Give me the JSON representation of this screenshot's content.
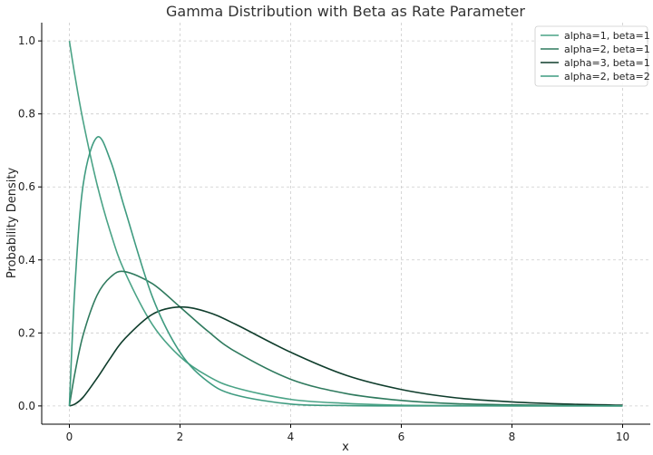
{
  "chart_data": {
    "type": "line",
    "title": "Gamma Distribution with Beta as Rate Parameter",
    "xlabel": "x",
    "ylabel": "Probability Density",
    "xlim": [
      -0.5,
      10.5
    ],
    "ylim": [
      -0.05,
      1.05
    ],
    "x_ticks": [
      "0",
      "2",
      "4",
      "6",
      "8",
      "10"
    ],
    "y_ticks": [
      "0.0",
      "0.2",
      "0.4",
      "0.6",
      "0.8",
      "1.0"
    ],
    "grid": true,
    "legend_position": "top-right",
    "x": [
      0,
      0.1,
      0.25,
      0.5,
      0.75,
      1,
      1.5,
      2,
      2.5,
      3,
      4,
      5,
      6,
      7,
      8,
      9,
      10
    ],
    "series": [
      {
        "name": "alpha=1, beta=1",
        "color": "#4aa386",
        "values": [
          1.0,
          0.905,
          0.779,
          0.607,
          0.472,
          0.368,
          0.223,
          0.135,
          0.082,
          0.05,
          0.018,
          0.007,
          0.002,
          0.001,
          0.0,
          0.0,
          0.0
        ]
      },
      {
        "name": "alpha=2, beta=1",
        "color": "#2f7a5e",
        "values": [
          0.0,
          0.09,
          0.195,
          0.303,
          0.354,
          0.368,
          0.335,
          0.271,
          0.205,
          0.149,
          0.073,
          0.034,
          0.015,
          0.006,
          0.003,
          0.001,
          0.0
        ]
      },
      {
        "name": "alpha=3, beta=1",
        "color": "#0f3d2c",
        "values": [
          0.0,
          0.005,
          0.024,
          0.076,
          0.133,
          0.184,
          0.251,
          0.271,
          0.257,
          0.224,
          0.147,
          0.084,
          0.045,
          0.022,
          0.011,
          0.005,
          0.002
        ]
      },
      {
        "name": "alpha=2, beta=2",
        "color": "#3f9b80",
        "values": [
          0.0,
          0.327,
          0.607,
          0.736,
          0.669,
          0.541,
          0.299,
          0.147,
          0.067,
          0.03,
          0.005,
          0.001,
          0.0,
          0.0,
          0.0,
          0.0,
          0.0
        ]
      }
    ]
  }
}
